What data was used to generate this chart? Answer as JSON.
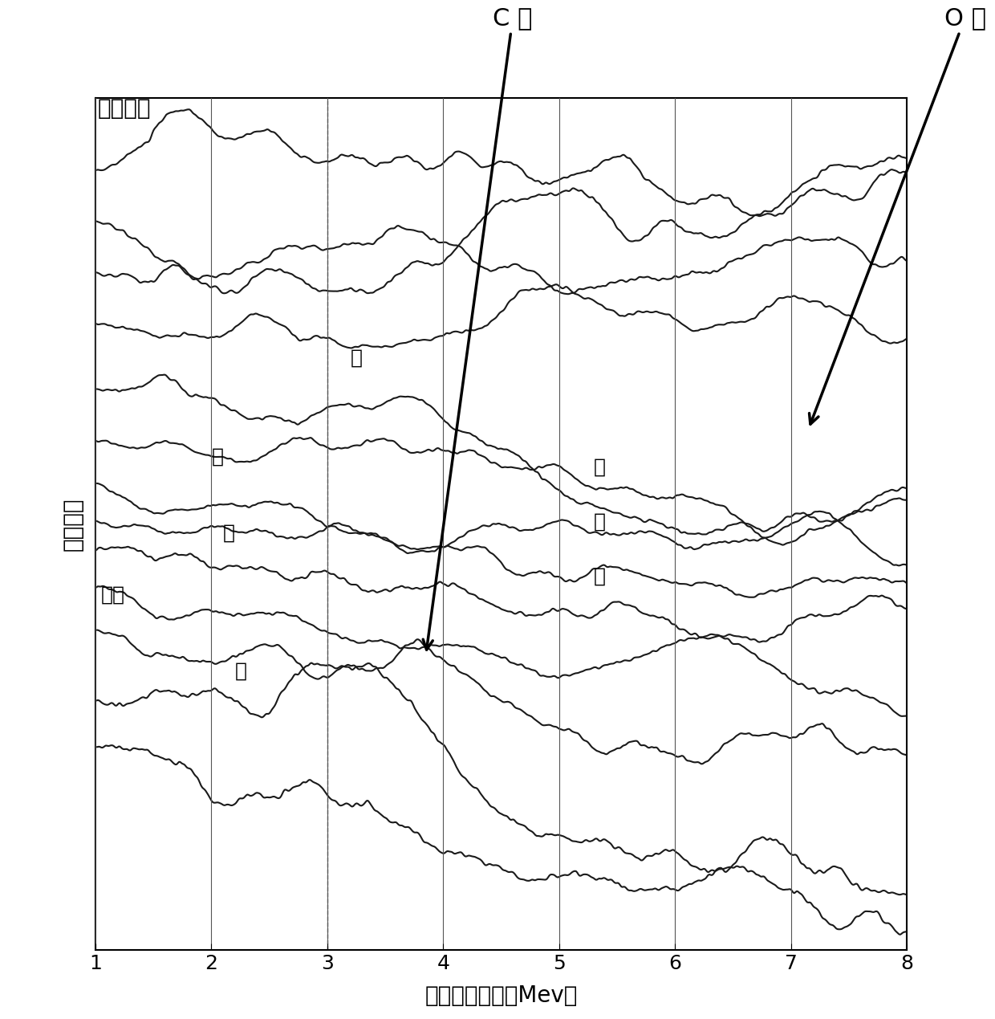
{
  "title": "非弹性谱",
  "xlabel": "伽马射线能量（Mev）",
  "ylabel": "相对计数",
  "xlim": [
    1,
    8
  ],
  "ylim": [
    0,
    10
  ],
  "annotation_C": "C 谱",
  "annotation_O": "O 谱",
  "labels": {
    "oxygen": "氧",
    "silicon": "硅",
    "magnesium": "镁",
    "iron": "铁",
    "sulfur": "硫",
    "calcium": "钙",
    "background": "背景",
    "carbon": "碳"
  },
  "line_color": "#1a1a1a",
  "bg_color": "#ffffff",
  "grid_color": "#555555"
}
